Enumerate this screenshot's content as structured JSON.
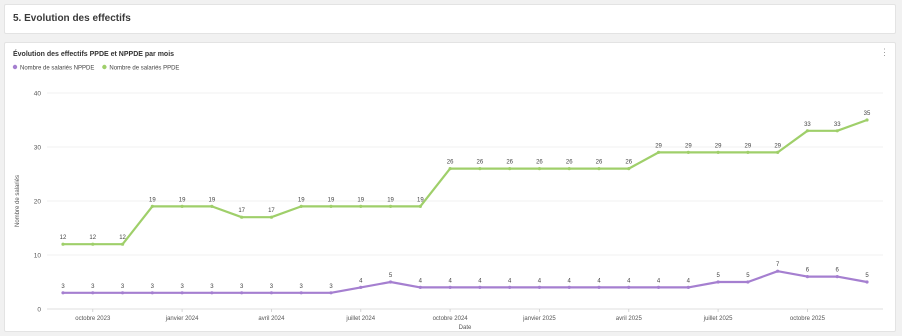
{
  "section": {
    "title": "5. Evolution des effectifs"
  },
  "card": {
    "menu_icon": "more-icon"
  },
  "chart_data": {
    "type": "line",
    "title": "Évolution des effectifs PPDE et NPPDE par mois",
    "xlabel": "Date",
    "ylabel": "Nombre de salariés",
    "ylim": [
      0,
      40
    ],
    "yticks": [
      0,
      10,
      20,
      30,
      40
    ],
    "xticks": [
      {
        "label": "octobre 2023",
        "index": 1
      },
      {
        "label": "janvier 2024",
        "index": 4
      },
      {
        "label": "avril 2024",
        "index": 7
      },
      {
        "label": "juillet 2024",
        "index": 10
      },
      {
        "label": "octobre 2024",
        "index": 13
      },
      {
        "label": "janvier 2025",
        "index": 16
      },
      {
        "label": "avril 2025",
        "index": 19
      },
      {
        "label": "juillet 2025",
        "index": 22
      },
      {
        "label": "octobre 2025",
        "index": 25
      }
    ],
    "grid": true,
    "legend_position": "top-left",
    "series": [
      {
        "name": "Nombre de salariés NPPDE",
        "color": "#a57fd0",
        "values": [
          3,
          3,
          3,
          3,
          3,
          3,
          3,
          3,
          3,
          3,
          4,
          5,
          4,
          4,
          4,
          4,
          4,
          4,
          4,
          4,
          4,
          4,
          5,
          5,
          7,
          6,
          6,
          5
        ]
      },
      {
        "name": "Nombre de salariés PPDE",
        "color": "#9fcf6a",
        "values": [
          12,
          12,
          12,
          19,
          19,
          19,
          17,
          17,
          19,
          19,
          19,
          19,
          19,
          26,
          26,
          26,
          26,
          26,
          26,
          26,
          29,
          29,
          29,
          29,
          29,
          33,
          33,
          35
        ]
      }
    ]
  }
}
